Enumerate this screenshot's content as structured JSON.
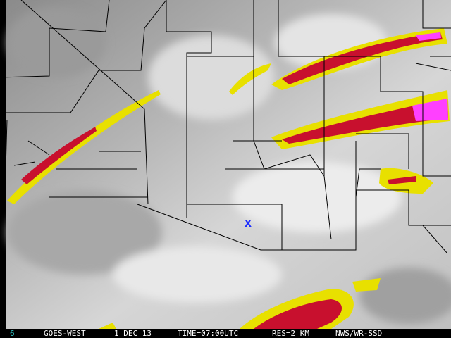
{
  "footer": {
    "frame": "6",
    "satellite": "GOES-WEST",
    "date": "1 DEC 13",
    "time": "TIME=07:00UTC",
    "resolution": "RES=2 KM",
    "source": "NWS/WR-SSD"
  },
  "marker": {
    "label": "X",
    "color": "#1a2cff"
  },
  "colors": {
    "frame_color": "#33cccc",
    "cloud_yellow": "#e8e000",
    "cloud_red": "#c8102e",
    "cloud_magenta": "#ff40ff",
    "borders": "#000000"
  }
}
